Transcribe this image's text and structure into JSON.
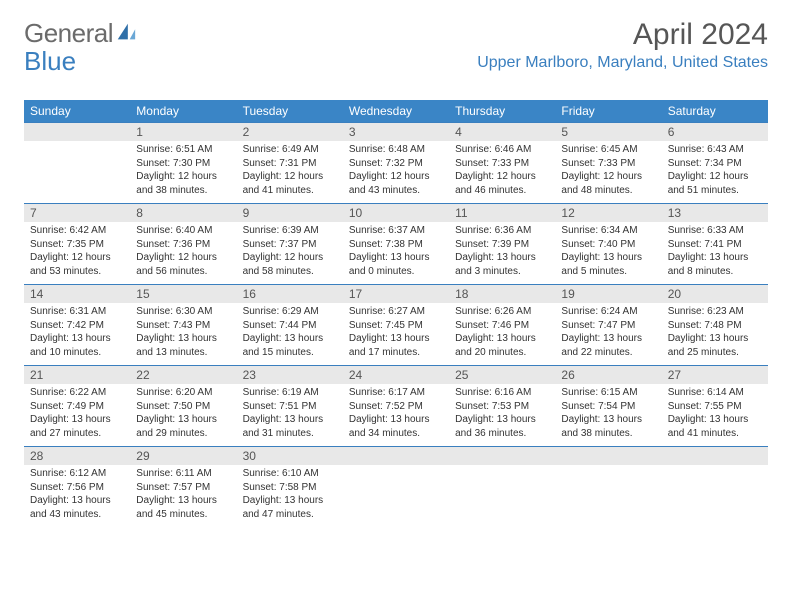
{
  "logo": {
    "text1": "General",
    "text2": "Blue",
    "color1": "#6b6b6b",
    "color2": "#3a7fbf"
  },
  "title": "April 2024",
  "location": "Upper Marlboro, Maryland, United States",
  "header_bg": "#3a85c6",
  "daynum_bg": "#e8e8e8",
  "border_color": "#3a7fbf",
  "day_headers": [
    "Sunday",
    "Monday",
    "Tuesday",
    "Wednesday",
    "Thursday",
    "Friday",
    "Saturday"
  ],
  "weeks": [
    [
      {
        "n": "",
        "sr": "",
        "ss": "",
        "dl": ""
      },
      {
        "n": "1",
        "sr": "Sunrise: 6:51 AM",
        "ss": "Sunset: 7:30 PM",
        "dl": "Daylight: 12 hours and 38 minutes."
      },
      {
        "n": "2",
        "sr": "Sunrise: 6:49 AM",
        "ss": "Sunset: 7:31 PM",
        "dl": "Daylight: 12 hours and 41 minutes."
      },
      {
        "n": "3",
        "sr": "Sunrise: 6:48 AM",
        "ss": "Sunset: 7:32 PM",
        "dl": "Daylight: 12 hours and 43 minutes."
      },
      {
        "n": "4",
        "sr": "Sunrise: 6:46 AM",
        "ss": "Sunset: 7:33 PM",
        "dl": "Daylight: 12 hours and 46 minutes."
      },
      {
        "n": "5",
        "sr": "Sunrise: 6:45 AM",
        "ss": "Sunset: 7:33 PM",
        "dl": "Daylight: 12 hours and 48 minutes."
      },
      {
        "n": "6",
        "sr": "Sunrise: 6:43 AM",
        "ss": "Sunset: 7:34 PM",
        "dl": "Daylight: 12 hours and 51 minutes."
      }
    ],
    [
      {
        "n": "7",
        "sr": "Sunrise: 6:42 AM",
        "ss": "Sunset: 7:35 PM",
        "dl": "Daylight: 12 hours and 53 minutes."
      },
      {
        "n": "8",
        "sr": "Sunrise: 6:40 AM",
        "ss": "Sunset: 7:36 PM",
        "dl": "Daylight: 12 hours and 56 minutes."
      },
      {
        "n": "9",
        "sr": "Sunrise: 6:39 AM",
        "ss": "Sunset: 7:37 PM",
        "dl": "Daylight: 12 hours and 58 minutes."
      },
      {
        "n": "10",
        "sr": "Sunrise: 6:37 AM",
        "ss": "Sunset: 7:38 PM",
        "dl": "Daylight: 13 hours and 0 minutes."
      },
      {
        "n": "11",
        "sr": "Sunrise: 6:36 AM",
        "ss": "Sunset: 7:39 PM",
        "dl": "Daylight: 13 hours and 3 minutes."
      },
      {
        "n": "12",
        "sr": "Sunrise: 6:34 AM",
        "ss": "Sunset: 7:40 PM",
        "dl": "Daylight: 13 hours and 5 minutes."
      },
      {
        "n": "13",
        "sr": "Sunrise: 6:33 AM",
        "ss": "Sunset: 7:41 PM",
        "dl": "Daylight: 13 hours and 8 minutes."
      }
    ],
    [
      {
        "n": "14",
        "sr": "Sunrise: 6:31 AM",
        "ss": "Sunset: 7:42 PM",
        "dl": "Daylight: 13 hours and 10 minutes."
      },
      {
        "n": "15",
        "sr": "Sunrise: 6:30 AM",
        "ss": "Sunset: 7:43 PM",
        "dl": "Daylight: 13 hours and 13 minutes."
      },
      {
        "n": "16",
        "sr": "Sunrise: 6:29 AM",
        "ss": "Sunset: 7:44 PM",
        "dl": "Daylight: 13 hours and 15 minutes."
      },
      {
        "n": "17",
        "sr": "Sunrise: 6:27 AM",
        "ss": "Sunset: 7:45 PM",
        "dl": "Daylight: 13 hours and 17 minutes."
      },
      {
        "n": "18",
        "sr": "Sunrise: 6:26 AM",
        "ss": "Sunset: 7:46 PM",
        "dl": "Daylight: 13 hours and 20 minutes."
      },
      {
        "n": "19",
        "sr": "Sunrise: 6:24 AM",
        "ss": "Sunset: 7:47 PM",
        "dl": "Daylight: 13 hours and 22 minutes."
      },
      {
        "n": "20",
        "sr": "Sunrise: 6:23 AM",
        "ss": "Sunset: 7:48 PM",
        "dl": "Daylight: 13 hours and 25 minutes."
      }
    ],
    [
      {
        "n": "21",
        "sr": "Sunrise: 6:22 AM",
        "ss": "Sunset: 7:49 PM",
        "dl": "Daylight: 13 hours and 27 minutes."
      },
      {
        "n": "22",
        "sr": "Sunrise: 6:20 AM",
        "ss": "Sunset: 7:50 PM",
        "dl": "Daylight: 13 hours and 29 minutes."
      },
      {
        "n": "23",
        "sr": "Sunrise: 6:19 AM",
        "ss": "Sunset: 7:51 PM",
        "dl": "Daylight: 13 hours and 31 minutes."
      },
      {
        "n": "24",
        "sr": "Sunrise: 6:17 AM",
        "ss": "Sunset: 7:52 PM",
        "dl": "Daylight: 13 hours and 34 minutes."
      },
      {
        "n": "25",
        "sr": "Sunrise: 6:16 AM",
        "ss": "Sunset: 7:53 PM",
        "dl": "Daylight: 13 hours and 36 minutes."
      },
      {
        "n": "26",
        "sr": "Sunrise: 6:15 AM",
        "ss": "Sunset: 7:54 PM",
        "dl": "Daylight: 13 hours and 38 minutes."
      },
      {
        "n": "27",
        "sr": "Sunrise: 6:14 AM",
        "ss": "Sunset: 7:55 PM",
        "dl": "Daylight: 13 hours and 41 minutes."
      }
    ],
    [
      {
        "n": "28",
        "sr": "Sunrise: 6:12 AM",
        "ss": "Sunset: 7:56 PM",
        "dl": "Daylight: 13 hours and 43 minutes."
      },
      {
        "n": "29",
        "sr": "Sunrise: 6:11 AM",
        "ss": "Sunset: 7:57 PM",
        "dl": "Daylight: 13 hours and 45 minutes."
      },
      {
        "n": "30",
        "sr": "Sunrise: 6:10 AM",
        "ss": "Sunset: 7:58 PM",
        "dl": "Daylight: 13 hours and 47 minutes."
      },
      {
        "n": "",
        "sr": "",
        "ss": "",
        "dl": ""
      },
      {
        "n": "",
        "sr": "",
        "ss": "",
        "dl": ""
      },
      {
        "n": "",
        "sr": "",
        "ss": "",
        "dl": ""
      },
      {
        "n": "",
        "sr": "",
        "ss": "",
        "dl": ""
      }
    ]
  ]
}
